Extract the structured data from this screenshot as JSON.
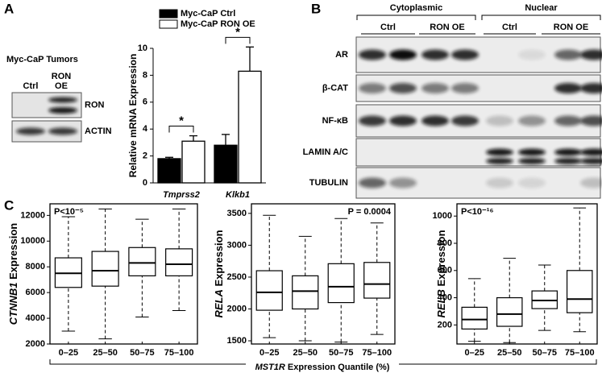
{
  "panel_labels": [
    "A",
    "B",
    "C"
  ],
  "blot_a": {
    "title": "Myc-CaP Tumors",
    "lane_ctrl": "Ctrl",
    "lane_ron_oe": [
      "RON",
      "OE"
    ],
    "rows": [
      "RON",
      "ACTIN"
    ]
  },
  "blot_b": {
    "fractions": [
      "Cytoplasmic",
      "Nuclear"
    ],
    "groups": [
      "Ctrl",
      "RON OE",
      "Ctrl",
      "RON OE"
    ],
    "rows": [
      "AR",
      "β-CAT",
      "NF-κB",
      "LAMIN A/C",
      "TUBULIN"
    ]
  },
  "shared_xlabel": {
    "gene": "MST1R",
    "text": "Expression Quantile (%)"
  },
  "chart_data": [
    {
      "type": "bar",
      "ylabel": "Relative mRNA Expression",
      "categories": [
        "Tmprss2",
        "Klkb1"
      ],
      "series": [
        {
          "name": "Myc-CaP Ctrl",
          "color": "#000000",
          "values": [
            1.8,
            2.8
          ],
          "errors": [
            0.1,
            0.8
          ]
        },
        {
          "name": "Myc-CaP RON OE",
          "color": "#ffffff",
          "values": [
            3.1,
            8.3
          ],
          "errors": [
            0.4,
            1.8
          ]
        }
      ],
      "ylim": [
        0,
        10
      ],
      "yticks": [
        0,
        2,
        4,
        6,
        8,
        10
      ],
      "annotations": [
        "*",
        "*"
      ]
    },
    {
      "type": "box",
      "ylabel_gene": "CTNNB1",
      "ylabel": "Expression",
      "annotation": "P<10⁻⁵",
      "categories": [
        "0–25",
        "25–50",
        "50–75",
        "75–100"
      ],
      "stats": [
        [
          3000,
          6400,
          7500,
          8700,
          11900
        ],
        [
          2400,
          6500,
          7700,
          9200,
          12500
        ],
        [
          4100,
          7300,
          8300,
          9500,
          11700
        ],
        [
          4600,
          7300,
          8200,
          9400,
          12500
        ]
      ],
      "ylim": [
        2000,
        12900
      ],
      "yticks": [
        2000,
        4000,
        6000,
        8000,
        10000,
        12000
      ]
    },
    {
      "type": "box",
      "ylabel_gene": "RELA",
      "ylabel": "Expression",
      "annotation": "P = 0.0004",
      "categories": [
        "0–25",
        "25–50",
        "50–75",
        "75–100"
      ],
      "stats": [
        [
          1550,
          1980,
          2260,
          2600,
          3470
        ],
        [
          1500,
          2000,
          2280,
          2520,
          3140
        ],
        [
          1480,
          2100,
          2350,
          2710,
          3420
        ],
        [
          1600,
          2170,
          2390,
          2730,
          3350
        ]
      ],
      "ylim": [
        1450,
        3650
      ],
      "yticks": [
        1500,
        2000,
        2500,
        3000,
        3500
      ]
    },
    {
      "type": "box",
      "ylabel_gene": "RELB",
      "ylabel": "Expression",
      "annotation": "P<10⁻¹⁶",
      "categories": [
        "0–25",
        "25–50",
        "50–75",
        "75–100"
      ],
      "stats": [
        [
          80,
          170,
          240,
          330,
          540
        ],
        [
          70,
          190,
          280,
          400,
          690
        ],
        [
          160,
          320,
          380,
          450,
          640
        ],
        [
          150,
          290,
          390,
          600,
          1060
        ]
      ],
      "ylim": [
        60,
        1090
      ],
      "yticks": [
        200,
        400,
        600,
        800,
        1000
      ]
    }
  ]
}
